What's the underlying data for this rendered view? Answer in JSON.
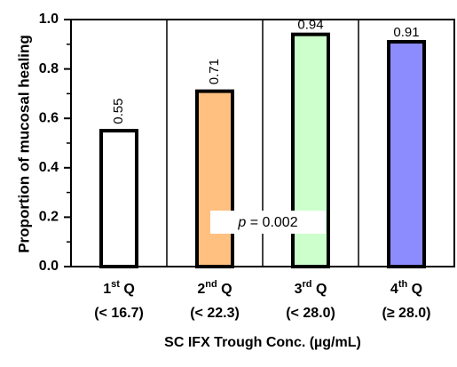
{
  "chart_data": {
    "type": "bar",
    "ylabel": "Proportion of mucosal healing",
    "xlabel": "SC IFX Trough Conc. (µg/mL)",
    "categories": [
      {
        "lead": "1",
        "sup": "st",
        "tail": " Q",
        "range": "(< 16.7)"
      },
      {
        "lead": "2",
        "sup": "nd",
        "tail": " Q",
        "range": "(< 22.3)"
      },
      {
        "lead": "3",
        "sup": "rd",
        "tail": " Q",
        "range": "(< 28.0)"
      },
      {
        "lead": "4",
        "sup": "th",
        "tail": " Q",
        "range": "(≥ 28.0)"
      }
    ],
    "values": [
      0.55,
      0.71,
      0.94,
      0.91
    ],
    "colors": [
      "#ffffff",
      "#ffc080",
      "#ccffcc",
      "#8c8cff"
    ],
    "ylim": [
      0,
      1
    ],
    "yticks": [
      {
        "value": 0,
        "label": "0.0"
      },
      0.2,
      0.4,
      0.6,
      0.8,
      {
        "value": 1,
        "label": "1.0"
      }
    ],
    "annotation": {
      "symbol": "p",
      "text": " = 0.002"
    }
  }
}
